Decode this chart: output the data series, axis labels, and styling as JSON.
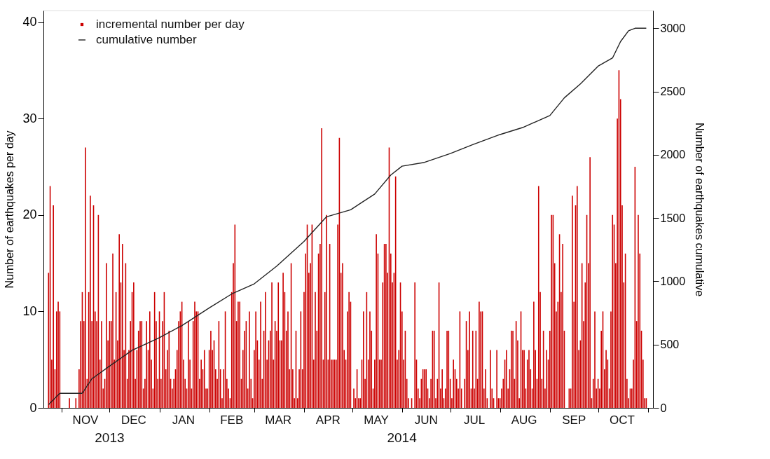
{
  "chart_data": {
    "type": "bar",
    "ylabel": "Number of earthquakes per day",
    "y2label": "Number of earthquakes cumulative",
    "xlim": [
      "2013-10-23",
      "2014-11-02"
    ],
    "ylim": [
      0,
      41.2
    ],
    "yticks": [
      0,
      10,
      20,
      30,
      40
    ],
    "y2lim": [
      0,
      3140
    ],
    "y2ticks": [
      0,
      500,
      1000,
      1500,
      2000,
      2500,
      3000
    ],
    "xticks": [
      {
        "value": "2013-11-01",
        "label": null
      },
      {
        "value": "2013-12-01",
        "label": null
      },
      {
        "value": "2014-01-01",
        "label": null
      },
      {
        "value": "2014-02-01",
        "label": null
      },
      {
        "value": "2014-03-01",
        "label": null
      },
      {
        "value": "2014-04-01",
        "label": null
      },
      {
        "value": "2014-05-01",
        "label": null
      },
      {
        "value": "2014-06-01",
        "label": null
      },
      {
        "value": "2014-07-01",
        "label": null
      },
      {
        "value": "2014-08-01",
        "label": null
      },
      {
        "value": "2014-09-01",
        "label": null
      },
      {
        "value": "2014-10-01",
        "label": null
      },
      {
        "value": "2014-11-01",
        "label": null
      },
      {
        "value": "2013-11-16",
        "label": "NOV"
      },
      {
        "value": "2013-12-16",
        "label": "DEC"
      },
      {
        "value": "2014-01-16",
        "label": "JAN"
      },
      {
        "value": "2014-02-15",
        "label": "FEB"
      },
      {
        "value": "2014-03-16",
        "label": "MAR"
      },
      {
        "value": "2014-04-16",
        "label": "APR"
      },
      {
        "value": "2014-05-16",
        "label": "MAY"
      },
      {
        "value": "2014-06-16",
        "label": "JUN"
      },
      {
        "value": "2014-07-16",
        "label": "JUL"
      },
      {
        "value": "2014-08-16",
        "label": "AUG"
      },
      {
        "value": "2014-09-16",
        "label": "SEP"
      },
      {
        "value": "2014-10-16",
        "label": "OCT"
      }
    ],
    "annotations": [
      "2013",
      "2014"
    ],
    "legend": "top left",
    "grid": false,
    "series": [
      {
        "name": "incremental number per day",
        "color": "#cc0000",
        "x": [
          "2013-10-24",
          "2013-10-25",
          "2013-10-26",
          "2013-10-27",
          "2013-10-28",
          "2013-10-29",
          "2013-10-30",
          "2013-10-31",
          "2013-11-01",
          "2013-11-02",
          "2013-11-03",
          "2013-11-04",
          "2013-11-05",
          "2013-11-06",
          "2013-11-07",
          "2013-11-08",
          "2013-11-09",
          "2013-11-10",
          "2013-11-11",
          "2013-11-12",
          "2013-11-13",
          "2013-11-14",
          "2013-11-15",
          "2013-11-16",
          "2013-11-17",
          "2013-11-18",
          "2013-11-19",
          "2013-11-20",
          "2013-11-21",
          "2013-11-22",
          "2013-11-23",
          "2013-11-24",
          "2013-11-25",
          "2013-11-26",
          "2013-11-27",
          "2013-11-28",
          "2013-11-29",
          "2013-11-30",
          "2013-12-01",
          "2013-12-02",
          "2013-12-03",
          "2013-12-04",
          "2013-12-05",
          "2013-12-06",
          "2013-12-07",
          "2013-12-08",
          "2013-12-09",
          "2013-12-10",
          "2013-12-11",
          "2013-12-12",
          "2013-12-13",
          "2013-12-14",
          "2013-12-15",
          "2013-12-16",
          "2013-12-17",
          "2013-12-18",
          "2013-12-19",
          "2013-12-20",
          "2013-12-21",
          "2013-12-22",
          "2013-12-23",
          "2013-12-24",
          "2013-12-25",
          "2013-12-26",
          "2013-12-27",
          "2013-12-28",
          "2013-12-29",
          "2013-12-30",
          "2013-12-31",
          "2014-01-01",
          "2014-01-02",
          "2014-01-03",
          "2014-01-04",
          "2014-01-05",
          "2014-01-06",
          "2014-01-07",
          "2014-01-08",
          "2014-01-09",
          "2014-01-10",
          "2014-01-11",
          "2014-01-12",
          "2014-01-13",
          "2014-01-14",
          "2014-01-15",
          "2014-01-16",
          "2014-01-17",
          "2014-01-18",
          "2014-01-19",
          "2014-01-20",
          "2014-01-21",
          "2014-01-22",
          "2014-01-23",
          "2014-01-24",
          "2014-01-25",
          "2014-01-26",
          "2014-01-27",
          "2014-01-28",
          "2014-01-29",
          "2014-01-30",
          "2014-01-31",
          "2014-02-01",
          "2014-02-02",
          "2014-02-03",
          "2014-02-04",
          "2014-02-05",
          "2014-02-06",
          "2014-02-07",
          "2014-02-08",
          "2014-02-09",
          "2014-02-10",
          "2014-02-11",
          "2014-02-12",
          "2014-02-13",
          "2014-02-14",
          "2014-02-15",
          "2014-02-16",
          "2014-02-17",
          "2014-02-18",
          "2014-02-19",
          "2014-02-20",
          "2014-02-21",
          "2014-02-22",
          "2014-02-23",
          "2014-02-24",
          "2014-02-25",
          "2014-02-26",
          "2014-02-27",
          "2014-02-28",
          "2014-03-01",
          "2014-03-02",
          "2014-03-03",
          "2014-03-04",
          "2014-03-05",
          "2014-03-06",
          "2014-03-07",
          "2014-03-08",
          "2014-03-09",
          "2014-03-10",
          "2014-03-11",
          "2014-03-12",
          "2014-03-13",
          "2014-03-14",
          "2014-03-15",
          "2014-03-16",
          "2014-03-17",
          "2014-03-18",
          "2014-03-19",
          "2014-03-20",
          "2014-03-21",
          "2014-03-22",
          "2014-03-23",
          "2014-03-24",
          "2014-03-25",
          "2014-03-26",
          "2014-03-27",
          "2014-03-28",
          "2014-03-29",
          "2014-03-30",
          "2014-03-31",
          "2014-04-01",
          "2014-04-02",
          "2014-04-03",
          "2014-04-04",
          "2014-04-05",
          "2014-04-06",
          "2014-04-07",
          "2014-04-08",
          "2014-04-09",
          "2014-04-10",
          "2014-04-11",
          "2014-04-12",
          "2014-04-13",
          "2014-04-14",
          "2014-04-15",
          "2014-04-16",
          "2014-04-17",
          "2014-04-18",
          "2014-04-19",
          "2014-04-20",
          "2014-04-21",
          "2014-04-22",
          "2014-04-23",
          "2014-04-24",
          "2014-04-25",
          "2014-04-26",
          "2014-04-27",
          "2014-04-28",
          "2014-04-29",
          "2014-04-30",
          "2014-05-01",
          "2014-05-02",
          "2014-05-03",
          "2014-05-04",
          "2014-05-05",
          "2014-05-06",
          "2014-05-07",
          "2014-05-08",
          "2014-05-09",
          "2014-05-10",
          "2014-05-11",
          "2014-05-12",
          "2014-05-13",
          "2014-05-14",
          "2014-05-15",
          "2014-05-16",
          "2014-05-17",
          "2014-05-18",
          "2014-05-19",
          "2014-05-20",
          "2014-05-21",
          "2014-05-22",
          "2014-05-23",
          "2014-05-24",
          "2014-05-25",
          "2014-05-26",
          "2014-05-27",
          "2014-05-28",
          "2014-05-29",
          "2014-05-30",
          "2014-05-31",
          "2014-06-01",
          "2014-06-02",
          "2014-06-03",
          "2014-06-04",
          "2014-06-05",
          "2014-06-06",
          "2014-06-07",
          "2014-06-08",
          "2014-06-09",
          "2014-06-10",
          "2014-06-11",
          "2014-06-12",
          "2014-06-13",
          "2014-06-14",
          "2014-06-15",
          "2014-06-16",
          "2014-06-17",
          "2014-06-18",
          "2014-06-19",
          "2014-06-20",
          "2014-06-21",
          "2014-06-22",
          "2014-06-23",
          "2014-06-24",
          "2014-06-25",
          "2014-06-26",
          "2014-06-27",
          "2014-06-28",
          "2014-06-29",
          "2014-06-30",
          "2014-07-01",
          "2014-07-02",
          "2014-07-03",
          "2014-07-04",
          "2014-07-05",
          "2014-07-06",
          "2014-07-07",
          "2014-07-08",
          "2014-07-09",
          "2014-07-10",
          "2014-07-11",
          "2014-07-12",
          "2014-07-13",
          "2014-07-14",
          "2014-07-15",
          "2014-07-16",
          "2014-07-17",
          "2014-07-18",
          "2014-07-19",
          "2014-07-20",
          "2014-07-21",
          "2014-07-22",
          "2014-07-23",
          "2014-07-24",
          "2014-07-25",
          "2014-07-26",
          "2014-07-27",
          "2014-07-28",
          "2014-07-29",
          "2014-07-30",
          "2014-07-31",
          "2014-08-01",
          "2014-08-02",
          "2014-08-03",
          "2014-08-04",
          "2014-08-05",
          "2014-08-06",
          "2014-08-07",
          "2014-08-08",
          "2014-08-09",
          "2014-08-10",
          "2014-08-11",
          "2014-08-12",
          "2014-08-13",
          "2014-08-14",
          "2014-08-15",
          "2014-08-16",
          "2014-08-17",
          "2014-08-18",
          "2014-08-19",
          "2014-08-20",
          "2014-08-21",
          "2014-08-22",
          "2014-08-23",
          "2014-08-24",
          "2014-08-25",
          "2014-08-26",
          "2014-08-27",
          "2014-08-28",
          "2014-08-29",
          "2014-08-30",
          "2014-08-31",
          "2014-09-01",
          "2014-09-02",
          "2014-09-03",
          "2014-09-04",
          "2014-09-05",
          "2014-09-06",
          "2014-09-07",
          "2014-09-08",
          "2014-09-09",
          "2014-09-10",
          "2014-09-11",
          "2014-09-12",
          "2014-09-13",
          "2014-09-14",
          "2014-09-15",
          "2014-09-16",
          "2014-09-17",
          "2014-09-18",
          "2014-09-19",
          "2014-09-20",
          "2014-09-21",
          "2014-09-22",
          "2014-09-23",
          "2014-09-24",
          "2014-09-25",
          "2014-09-26",
          "2014-09-27",
          "2014-09-28",
          "2014-09-29",
          "2014-09-30",
          "2014-10-01",
          "2014-10-02",
          "2014-10-03",
          "2014-10-04",
          "2014-10-05",
          "2014-10-06",
          "2014-10-07",
          "2014-10-08",
          "2014-10-09",
          "2014-10-10",
          "2014-10-11",
          "2014-10-12",
          "2014-10-13",
          "2014-10-14",
          "2014-10-15",
          "2014-10-16",
          "2014-10-17",
          "2014-10-18",
          "2014-10-19",
          "2014-10-20",
          "2014-10-21",
          "2014-10-22",
          "2014-10-23",
          "2014-10-24",
          "2014-10-25",
          "2014-10-26",
          "2014-10-27",
          "2014-10-28",
          "2014-10-29",
          "2014-10-30",
          "2014-10-31"
        ],
        "values": [
          14,
          23,
          5,
          21,
          4,
          10,
          11,
          10,
          0,
          0,
          0,
          0,
          0,
          1,
          0,
          0,
          0,
          1,
          0,
          4,
          9,
          12,
          9,
          27,
          3,
          12,
          22,
          9,
          21,
          10,
          9,
          20,
          5,
          9,
          2,
          3,
          15,
          7,
          9,
          9,
          16,
          5,
          12,
          7,
          18,
          13,
          17,
          6,
          15,
          3,
          6,
          9,
          12,
          13,
          3,
          6,
          8,
          9,
          9,
          2,
          3,
          9,
          6,
          10,
          5,
          2,
          12,
          9,
          3,
          10,
          3,
          9,
          12,
          4,
          6,
          8,
          3,
          2,
          3,
          4,
          6,
          9,
          10,
          11,
          5,
          3,
          2,
          9,
          5,
          2,
          9,
          11,
          10,
          10,
          3,
          5,
          4,
          6,
          2,
          2,
          6,
          8,
          6,
          7,
          4,
          3,
          9,
          4,
          1,
          4,
          10,
          3,
          2,
          1,
          12,
          15,
          19,
          9,
          11,
          11,
          3,
          6,
          8,
          9,
          2,
          10,
          3,
          1,
          6,
          10,
          7,
          5,
          11,
          3,
          8,
          12,
          5,
          7,
          8,
          13,
          5,
          9,
          8,
          13,
          7,
          7,
          14,
          12,
          8,
          10,
          4,
          15,
          4,
          1,
          8,
          1,
          4,
          10,
          4,
          12,
          16,
          19,
          14,
          15,
          19,
          5,
          12,
          8,
          16,
          17,
          29,
          5,
          12,
          20,
          5,
          17,
          5,
          5,
          5,
          5,
          19,
          28,
          14,
          15,
          6,
          5,
          10,
          12,
          11,
          0,
          2,
          1,
          4,
          1,
          1,
          5,
          10,
          3,
          12,
          5,
          10,
          8,
          2,
          5,
          18,
          16,
          5,
          5,
          13,
          17,
          17,
          14,
          27,
          16,
          13,
          14,
          24,
          5,
          6,
          13,
          10,
          5,
          8,
          3,
          1,
          0,
          1,
          0,
          13,
          5,
          2,
          1,
          3,
          4,
          4,
          4,
          2,
          1,
          3,
          8,
          8,
          1,
          3,
          13,
          2,
          4,
          1,
          2,
          8,
          8,
          3,
          1,
          5,
          4,
          3,
          2,
          10,
          2,
          0,
          3,
          9,
          6,
          10,
          2,
          8,
          2,
          8,
          3,
          11,
          10,
          10,
          2,
          4,
          1,
          0,
          6,
          2,
          1,
          0,
          6,
          1,
          1,
          2,
          3,
          5,
          6,
          2,
          4,
          8,
          8,
          3,
          9,
          7,
          1,
          10,
          6,
          6,
          2,
          5,
          6,
          4,
          2,
          11,
          6,
          3,
          23,
          12,
          3,
          8,
          2,
          6,
          5,
          8,
          20,
          20,
          15,
          10,
          11,
          18,
          12,
          17,
          8,
          0,
          0,
          2,
          2,
          22,
          11,
          21,
          23,
          6,
          7,
          15,
          9,
          13,
          20,
          15,
          26,
          1,
          3,
          10,
          2,
          3,
          2,
          8,
          10,
          4,
          6,
          5,
          2,
          10,
          20,
          19,
          15,
          30,
          35,
          32,
          21,
          13,
          16,
          3,
          1,
          2,
          2,
          5,
          25,
          9,
          20,
          16,
          8,
          5,
          1,
          1
        ]
      },
      {
        "name": "cumulative number",
        "type": "line",
        "axis": "y2",
        "color": "#222222",
        "x": [
          "2013-10-24",
          "2013-10-31",
          "2013-11-14",
          "2013-11-20",
          "2013-12-01",
          "2013-12-15",
          "2014-01-01",
          "2014-01-15",
          "2014-02-01",
          "2014-02-15",
          "2014-03-01",
          "2014-03-15",
          "2014-04-01",
          "2014-04-15",
          "2014-04-30",
          "2014-05-15",
          "2014-05-25",
          "2014-06-01",
          "2014-06-15",
          "2014-07-01",
          "2014-07-15",
          "2014-08-01",
          "2014-08-15",
          "2014-09-01",
          "2014-09-10",
          "2014-09-20",
          "2014-10-01",
          "2014-10-10",
          "2014-10-15",
          "2014-10-20",
          "2014-10-24",
          "2014-10-31"
        ],
        "values": [
          25,
          115,
          115,
          230,
          330,
          455,
          555,
          650,
          790,
          900,
          980,
          1120,
          1315,
          1510,
          1565,
          1690,
          1840,
          1910,
          1940,
          2010,
          2080,
          2160,
          2215,
          2310,
          2450,
          2560,
          2700,
          2765,
          2895,
          2980,
          3000,
          3000
        ]
      }
    ]
  }
}
